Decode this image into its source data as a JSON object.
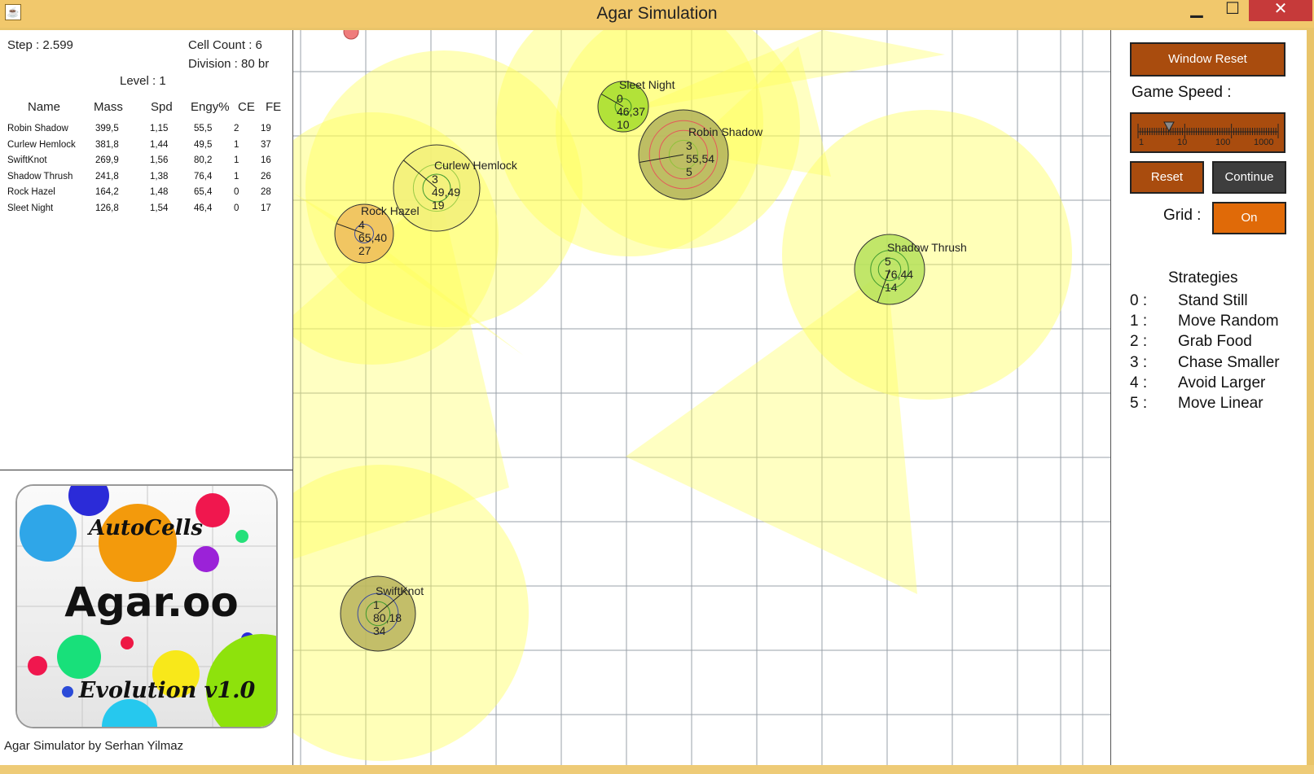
{
  "window": {
    "title": "Agar Simulation",
    "controls": {
      "minimize": "▁",
      "maximize": "☐",
      "close": "✕"
    },
    "app_icon": "java-coffee-cup-icon"
  },
  "stats": {
    "step": "Step : 2.599",
    "cell_count": "Cell Count : 6",
    "division": "Division : 80 br",
    "level": "Level : 1"
  },
  "table": {
    "headers": [
      "Name",
      "Mass",
      "Spd",
      "Engy%",
      "CE",
      "FE"
    ],
    "rows": [
      [
        "Robin Shadow",
        "399,5",
        "1,15",
        "55,5",
        "2",
        "19"
      ],
      [
        "Curlew Hemlock",
        "381,8",
        "1,44",
        "49,5",
        "1",
        "37"
      ],
      [
        "SwiftKnot",
        "269,9",
        "1,56",
        "80,2",
        "1",
        "16"
      ],
      [
        "Shadow Thrush",
        "241,8",
        "1,38",
        "76,4",
        "1",
        "26"
      ],
      [
        "Rock Hazel",
        "164,2",
        "1,48",
        "65,4",
        "0",
        "28"
      ],
      [
        "Sleet Night",
        "126,8",
        "1,54",
        "46,4",
        "0",
        "17"
      ]
    ]
  },
  "logo": {
    "line1": "AutoCells",
    "line2": "Agar.oo",
    "line3": "Evolution v1.0"
  },
  "credit": "Agar Simulator by Serhan Yilmaz",
  "cells": [
    {
      "name": "Sleet Night",
      "strategy": "0",
      "energy": "46,37",
      "food": "10",
      "fill": "#a4dd2a",
      "rings": [
        "#3a8a20"
      ]
    },
    {
      "name": "Robin Shadow",
      "strategy": "3",
      "energy": "55,54",
      "food": "5",
      "fill": "#b3b35c",
      "rings": [
        "#8fc23a",
        "#e45a5a",
        "#e45a5a"
      ]
    },
    {
      "name": "Curlew Hemlock",
      "strategy": "3",
      "energy": "49,49",
      "food": "19",
      "fill": "#f2f07a",
      "rings": [
        "#3e9a2e",
        "#9ccb48"
      ]
    },
    {
      "name": "Rock Hazel",
      "strategy": "4",
      "energy": "65,40",
      "food": "27",
      "fill": "#eebc5a",
      "rings": [
        "#3a4aa0"
      ]
    },
    {
      "name": "Shadow Thrush",
      "strategy": "5",
      "energy": "76,44",
      "food": "14",
      "fill": "#b6e25a",
      "rings": [
        "#3e9a2e",
        "#3e9a2e"
      ]
    },
    {
      "name": "SwiftKnot",
      "strategy": "1",
      "energy": "80,18",
      "food": "34",
      "fill": "#b9b35a",
      "rings": [
        "#3e9a2e",
        "#3a4aa0"
      ]
    }
  ],
  "controls": {
    "window_reset": "Window Reset",
    "game_speed_label": "Game Speed :",
    "slider_ticks": [
      "1",
      "10",
      "100",
      "1000"
    ],
    "reset": "Reset",
    "continue": "Continue",
    "grid_label": "Grid :",
    "grid_toggle": "On"
  },
  "strategies": {
    "title": "Strategies",
    "items": [
      {
        "num": "0 :",
        "label": "Stand Still"
      },
      {
        "num": "1 :",
        "label": "Move Random"
      },
      {
        "num": "2 :",
        "label": "Grab Food"
      },
      {
        "num": "3 :",
        "label": "Chase Smaller"
      },
      {
        "num": "4 :",
        "label": "Avoid Larger"
      },
      {
        "num": "5 :",
        "label": "Move Linear"
      }
    ]
  },
  "colors": {
    "accent": "#a94c0e",
    "grid_on": "#e06a08",
    "vision": "#ffff55",
    "grid": "#9aa0a8"
  }
}
